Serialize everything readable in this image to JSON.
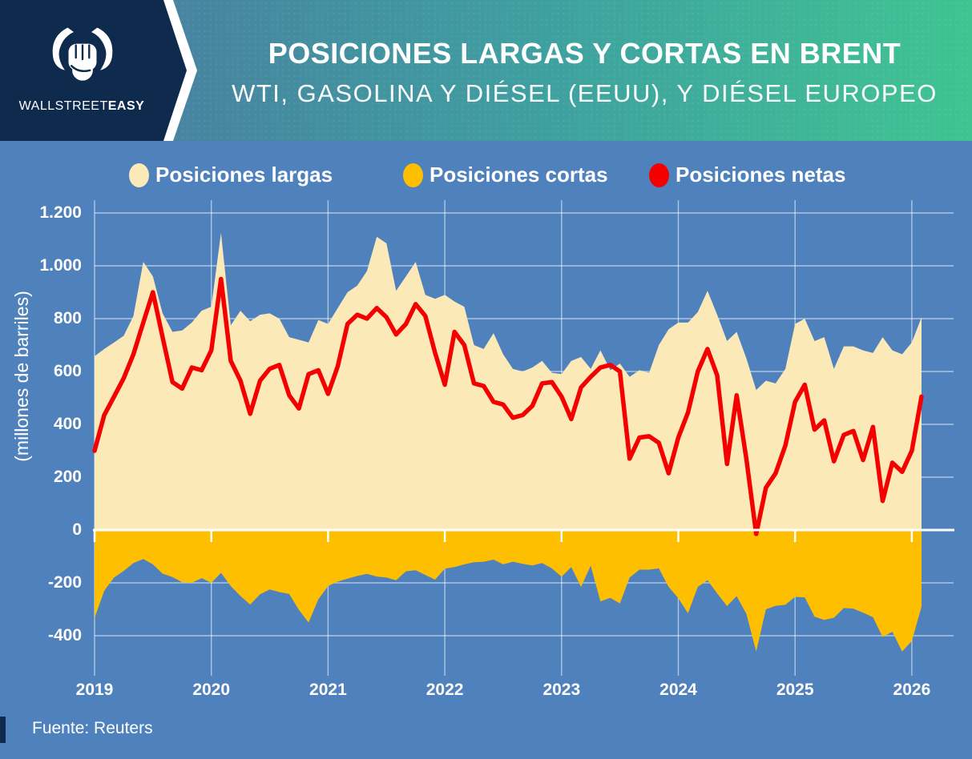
{
  "header": {
    "brand_first": "WALLSTREET",
    "brand_second": "EASY",
    "title": "POSICIONES LARGAS Y CORTAS EN BRENT",
    "subtitle": "WTI, GASOLINA Y DIÉSEL (EEUU), Y DIÉSEL EUROPEO"
  },
  "footer": {
    "source": "Fuente: Reuters"
  },
  "colors": {
    "background_blue": "#4f81bd",
    "header_navy": "#0e2a4d",
    "header_gradient_start": "#4b77a1",
    "header_gradient_end": "#3fc492",
    "long_area": "#fbe9b8",
    "short_area": "#fdbf00",
    "net_line": "#f40000",
    "grid_line": "rgba(255,255,255,0.55)",
    "axis_line": "#ffffff",
    "text": "#ffffff"
  },
  "chart_data": {
    "type": "area",
    "title": "POSICIONES LARGAS Y CORTAS EN BRENT — WTI, GASOLINA Y DIÉSEL (EEUU), Y DIÉSEL EUROPEO",
    "xlabel": "",
    "ylabel": "(millones de barriles)",
    "source": "Fuente: Reuters",
    "grid": true,
    "legend_position": "top",
    "xlim": [
      2019.0,
      2026.1
    ],
    "ylim": [
      -520,
      1250
    ],
    "x_tick_labels": [
      "2019",
      "2020",
      "2021",
      "2022",
      "2023",
      "2024",
      "2025",
      "2026"
    ],
    "y_ticks": [
      {
        "label": "1.200",
        "value": 1200
      },
      {
        "label": "1.000",
        "value": 1000
      },
      {
        "label": "800",
        "value": 800
      },
      {
        "label": "600",
        "value": 600
      },
      {
        "label": "400",
        "value": 400
      },
      {
        "label": "200",
        "value": 200
      },
      {
        "label": "0",
        "value": 0
      },
      {
        "label": "-200",
        "value": -200
      },
      {
        "label": "-400",
        "value": -400
      }
    ],
    "x": [
      2019.0,
      2019.083,
      2019.167,
      2019.25,
      2019.333,
      2019.417,
      2019.5,
      2019.583,
      2019.667,
      2019.75,
      2019.833,
      2019.917,
      2020.0,
      2020.083,
      2020.167,
      2020.25,
      2020.333,
      2020.417,
      2020.5,
      2020.583,
      2020.667,
      2020.75,
      2020.833,
      2020.917,
      2021.0,
      2021.083,
      2021.167,
      2021.25,
      2021.333,
      2021.417,
      2021.5,
      2021.583,
      2021.667,
      2021.75,
      2021.833,
      2021.917,
      2022.0,
      2022.083,
      2022.167,
      2022.25,
      2022.333,
      2022.417,
      2022.5,
      2022.583,
      2022.667,
      2022.75,
      2022.833,
      2022.917,
      2023.0,
      2023.083,
      2023.167,
      2023.25,
      2023.333,
      2023.417,
      2023.5,
      2023.583,
      2023.667,
      2023.75,
      2023.833,
      2023.917,
      2024.0,
      2024.083,
      2024.167,
      2024.25,
      2024.333,
      2024.417,
      2024.5,
      2024.583,
      2024.667,
      2024.75,
      2024.833,
      2024.917,
      2025.0,
      2025.083,
      2025.167,
      2025.25,
      2025.333,
      2025.417,
      2025.5,
      2025.583,
      2025.667,
      2025.75,
      2025.833,
      2025.917,
      2026.0,
      2026.083
    ],
    "series": [
      {
        "name": "Posiciones largas",
        "type": "area",
        "color": "#fbe9b8",
        "values": [
          658,
          685,
          710,
          735,
          810,
          1015,
          960,
          820,
          750,
          755,
          785,
          830,
          845,
          1125,
          775,
          830,
          790,
          815,
          820,
          800,
          730,
          720,
          710,
          795,
          780,
          840,
          900,
          925,
          980,
          1110,
          1085,
          905,
          960,
          1015,
          890,
          875,
          890,
          865,
          845,
          700,
          685,
          745,
          665,
          610,
          600,
          615,
          640,
          595,
          590,
          640,
          655,
          610,
          680,
          605,
          630,
          580,
          605,
          595,
          700,
          760,
          785,
          785,
          825,
          905,
          815,
          715,
          750,
          650,
          530,
          565,
          555,
          610,
          780,
          800,
          715,
          730,
          610,
          695,
          695,
          680,
          670,
          730,
          680,
          665,
          710,
          805
        ]
      },
      {
        "name": "Posiciones cortas",
        "type": "area",
        "color": "#fdbf00",
        "values": [
          -333,
          -230,
          -180,
          -155,
          -125,
          -110,
          -130,
          -165,
          -178,
          -198,
          -200,
          -182,
          -200,
          -162,
          -212,
          -250,
          -282,
          -243,
          -225,
          -235,
          -242,
          -302,
          -350,
          -262,
          -212,
          -195,
          -184,
          -174,
          -166,
          -176,
          -180,
          -190,
          -156,
          -152,
          -170,
          -188,
          -146,
          -140,
          -130,
          -122,
          -120,
          -112,
          -130,
          -120,
          -128,
          -134,
          -125,
          -145,
          -177,
          -140,
          -215,
          -135,
          -270,
          -257,
          -278,
          -180,
          -150,
          -150,
          -145,
          -215,
          -258,
          -315,
          -215,
          -190,
          -240,
          -288,
          -250,
          -317,
          -460,
          -300,
          -287,
          -283,
          -253,
          -255,
          -328,
          -340,
          -332,
          -295,
          -298,
          -313,
          -330,
          -405,
          -385,
          -460,
          -420,
          -290
        ]
      },
      {
        "name": "Posiciones netas",
        "type": "line",
        "color": "#f40000",
        "values": [
          300,
          435,
          505,
          575,
          665,
          785,
          900,
          730,
          560,
          535,
          615,
          605,
          680,
          950,
          640,
          565,
          440,
          565,
          610,
          625,
          510,
          460,
          590,
          605,
          515,
          620,
          780,
          815,
          800,
          840,
          805,
          740,
          780,
          855,
          810,
          670,
          550,
          750,
          700,
          555,
          545,
          485,
          475,
          425,
          435,
          470,
          555,
          560,
          505,
          420,
          540,
          580,
          615,
          625,
          600,
          270,
          350,
          355,
          330,
          215,
          350,
          445,
          600,
          685,
          585,
          250,
          510,
          270,
          -15,
          160,
          215,
          320,
          485,
          550,
          380,
          415,
          260,
          360,
          375,
          265,
          390,
          110,
          255,
          220,
          300,
          505
        ]
      }
    ]
  }
}
